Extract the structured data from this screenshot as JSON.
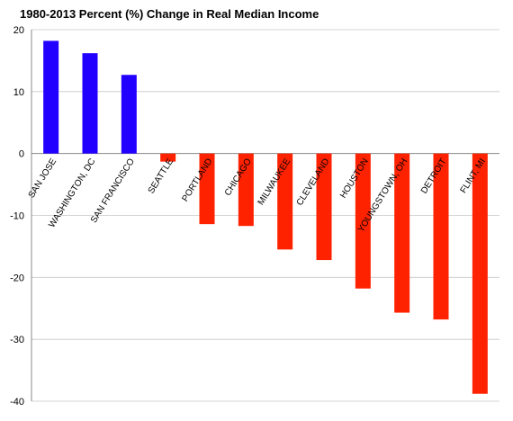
{
  "chart_data": {
    "type": "bar",
    "title": "1980-2013 Percent (%) Change in Real Median Income",
    "xlabel": "",
    "ylabel": "",
    "ylim": [
      -40,
      20
    ],
    "yticks": [
      20,
      10,
      0,
      -10,
      -20,
      -30,
      -40
    ],
    "grid": true,
    "legend": "none",
    "categories": [
      "SAN JOSE",
      "WASHINGTON, DC",
      "SAN FRANCISCO",
      "SEATTLE",
      "PORTLAND",
      "CHICAGO",
      "MILWAUKEE",
      "CLEVELAND",
      "HOUSTON",
      "YOUNGSTOWN, OH",
      "DETROIT",
      "FLINT, MI"
    ],
    "values": [
      18.2,
      16.2,
      12.7,
      -1.3,
      -11.4,
      -11.7,
      -15.5,
      -17.2,
      -21.8,
      -25.7,
      -26.8,
      -38.8
    ],
    "colors": {
      "positive": "#2200ff",
      "negative": "#ff2200"
    }
  }
}
